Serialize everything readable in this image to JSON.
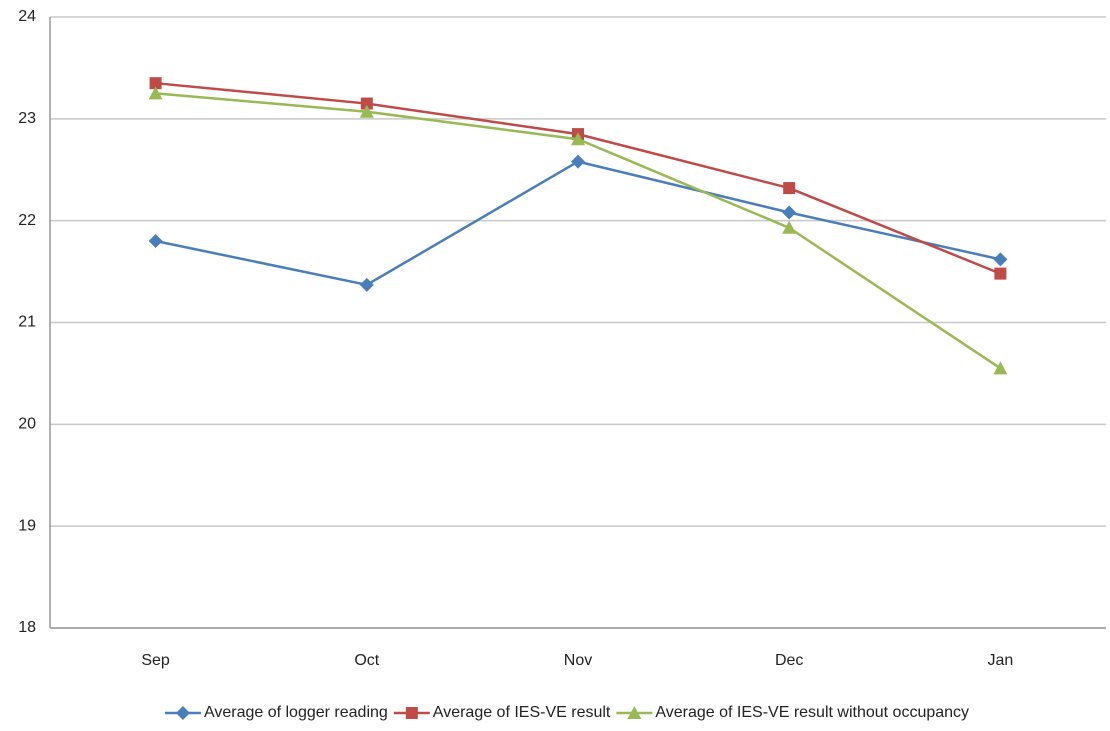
{
  "chart_data": {
    "type": "line",
    "categories": [
      "Sep",
      "Oct",
      "Nov",
      "Dec",
      "Jan"
    ],
    "series": [
      {
        "name": "Average of logger reading",
        "color": "#4a7ebb",
        "marker": "diamond",
        "values": [
          21.8,
          21.37,
          22.58,
          22.08,
          21.62
        ]
      },
      {
        "name": "Average of IES-VE result",
        "color": "#be4b48",
        "marker": "square",
        "values": [
          23.35,
          23.15,
          22.85,
          22.32,
          21.48
        ]
      },
      {
        "name": "Average of IES-VE result without occupancy",
        "color": "#98b954",
        "marker": "triangle",
        "values": [
          23.25,
          23.07,
          22.8,
          21.93,
          20.55
        ]
      }
    ],
    "ylim": [
      18,
      24
    ],
    "yticks": [
      18,
      19,
      20,
      21,
      22,
      23,
      24
    ],
    "grid": true,
    "legend": "bottom"
  }
}
